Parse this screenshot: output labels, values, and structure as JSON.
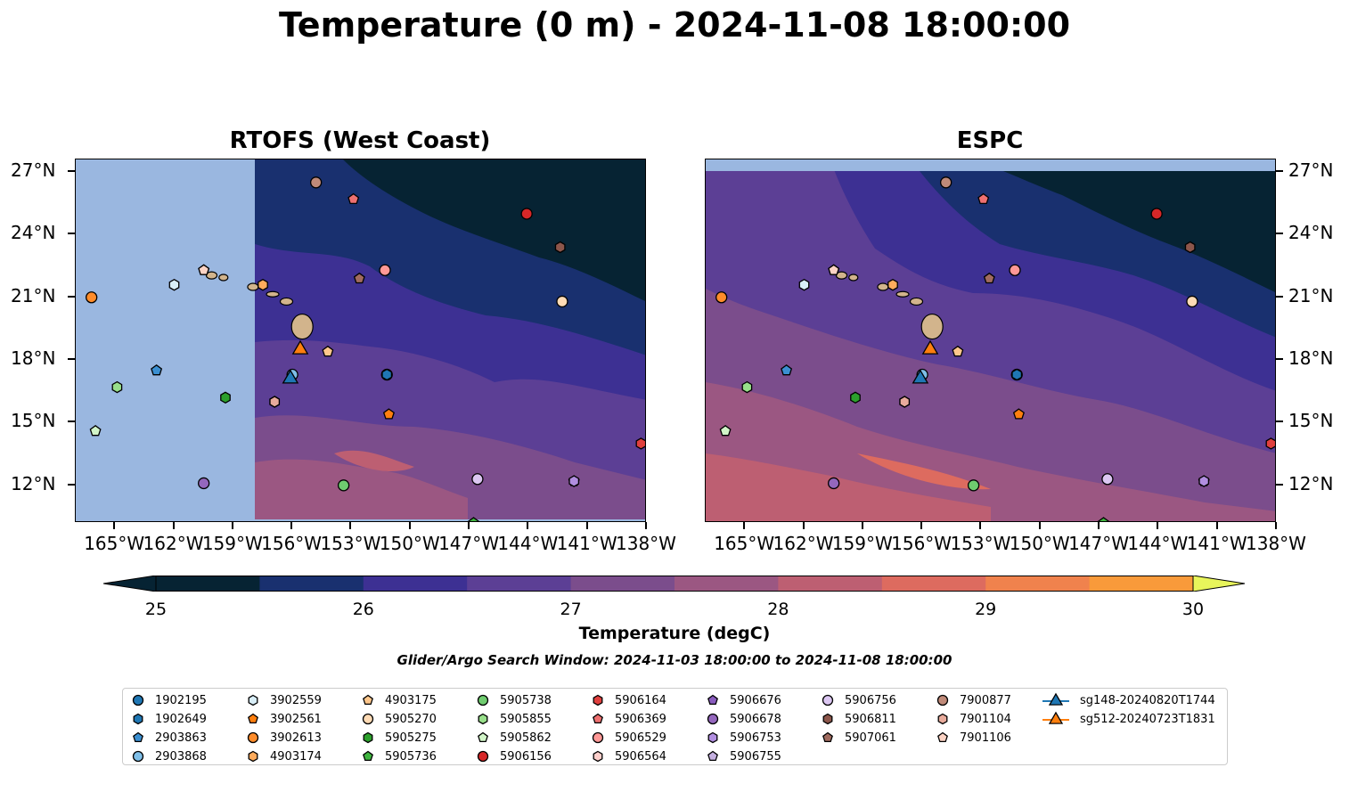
{
  "title": "Temperature (0 m) - 2024-11-08 18:00:00",
  "panels": [
    {
      "title": "RTOFS (West Coast)"
    },
    {
      "title": "ESPC"
    }
  ],
  "axes": {
    "lon_ticks": [
      "165°W",
      "162°W",
      "159°W",
      "156°W",
      "153°W",
      "150°W",
      "147°W",
      "144°W",
      "141°W",
      "138°W"
    ],
    "lat_ticks": [
      "27°N",
      "24°N",
      "21°N",
      "18°N",
      "15°N",
      "12°N"
    ],
    "lon_values": [
      -165,
      -162,
      -159,
      -156,
      -153,
      -150,
      -147,
      -144,
      -141,
      -138
    ],
    "lat_values": [
      27,
      24,
      21,
      18,
      15,
      12
    ],
    "lon_range": [
      -167,
      -138
    ],
    "lat_range": [
      10.2,
      27.6
    ]
  },
  "colorbar": {
    "label": "Temperature (degC)",
    "ticks": [
      "25",
      "26",
      "27",
      "28",
      "29",
      "30"
    ],
    "range": [
      25,
      30
    ],
    "extend": "both",
    "colors": [
      "#062333",
      "#19306f",
      "#3d3093",
      "#5c3f95",
      "#7b4d8c",
      "#9b5782",
      "#bd5f72",
      "#dd6b5f",
      "#f0824d",
      "#f99a3a",
      "#fcbc3e",
      "#e8f55b"
    ]
  },
  "search_window": "Glider/Argo Search Window: 2024-11-03 18:00:00 to 2024-11-08 18:00:00",
  "legend": [
    {
      "label": "1902195",
      "shape": "circle",
      "color": "#1f77b4"
    },
    {
      "label": "1902649",
      "shape": "hexagon",
      "color": "#1f77b4"
    },
    {
      "label": "2903863",
      "shape": "pentagon",
      "color": "#3b8fd1"
    },
    {
      "label": "2903868",
      "shape": "circle",
      "color": "#7fbfe8"
    },
    {
      "label": "3902559",
      "shape": "hexagon",
      "color": "#d8eef8"
    },
    {
      "label": "3902561",
      "shape": "pentagon",
      "color": "#ff7f0e"
    },
    {
      "label": "3902613",
      "shape": "circle",
      "color": "#ff8c2a"
    },
    {
      "label": "4903174",
      "shape": "hexagon",
      "color": "#ffab5c"
    },
    {
      "label": "4903175",
      "shape": "pentagon",
      "color": "#ffc78c"
    },
    {
      "label": "5905270",
      "shape": "circle",
      "color": "#ffdbb5"
    },
    {
      "label": "5905275",
      "shape": "hexagon",
      "color": "#2ca02c"
    },
    {
      "label": "5905736",
      "shape": "pentagon",
      "color": "#3fb43f"
    },
    {
      "label": "5905738",
      "shape": "circle",
      "color": "#6fcc6f"
    },
    {
      "label": "5905855",
      "shape": "hexagon",
      "color": "#98df8a"
    },
    {
      "label": "5905862",
      "shape": "pentagon",
      "color": "#d2f5c8"
    },
    {
      "label": "5906156",
      "shape": "circle",
      "color": "#d62728"
    },
    {
      "label": "5906164",
      "shape": "hexagon",
      "color": "#e0403e"
    },
    {
      "label": "5906369",
      "shape": "pentagon",
      "color": "#ee7070"
    },
    {
      "label": "5906529",
      "shape": "circle",
      "color": "#ff9896"
    },
    {
      "label": "5906564",
      "shape": "hexagon",
      "color": "#ffd0cc"
    },
    {
      "label": "5906676",
      "shape": "pentagon",
      "color": "#8a5cbf"
    },
    {
      "label": "5906678",
      "shape": "circle",
      "color": "#9467bd"
    },
    {
      "label": "5906753",
      "shape": "hexagon",
      "color": "#b18ee0"
    },
    {
      "label": "5906755",
      "shape": "pentagon",
      "color": "#c5b0e0"
    },
    {
      "label": "5906756",
      "shape": "circle",
      "color": "#dcc7f2"
    },
    {
      "label": "5906811",
      "shape": "hexagon",
      "color": "#8c564b"
    },
    {
      "label": "5907061",
      "shape": "pentagon",
      "color": "#a06b5f"
    },
    {
      "label": "7900877",
      "shape": "circle",
      "color": "#c08a79"
    },
    {
      "label": "7901104",
      "shape": "hexagon",
      "color": "#e8ab9c"
    },
    {
      "label": "7901106",
      "shape": "pentagon",
      "color": "#fcd3c4"
    },
    {
      "label": "sg148-20240820T1744",
      "shape": "triangle",
      "color": "#1f77b4"
    },
    {
      "label": "sg512-20240723T1831",
      "shape": "triangle",
      "color": "#ff7f0e"
    }
  ],
  "markers": [
    {
      "id": "1902195",
      "lon": -151.2,
      "lat": 17.3
    },
    {
      "id": "1902649",
      "lon": -151.2,
      "lat": 17.3
    },
    {
      "id": "2903863",
      "lon": -162.9,
      "lat": 17.5
    },
    {
      "id": "2903868",
      "lon": -156.0,
      "lat": 17.3
    },
    {
      "id": "3902559",
      "lon": -162.0,
      "lat": 21.6
    },
    {
      "id": "3902561",
      "lon": -151.1,
      "lat": 15.4
    },
    {
      "id": "3902613",
      "lon": -166.2,
      "lat": 21.0
    },
    {
      "id": "4903174",
      "lon": -157.5,
      "lat": 21.6
    },
    {
      "id": "4903175",
      "lon": -154.2,
      "lat": 18.4
    },
    {
      "id": "5905270",
      "lon": -142.3,
      "lat": 20.8
    },
    {
      "id": "5905275",
      "lon": -159.4,
      "lat": 16.2
    },
    {
      "id": "5905736",
      "lon": -146.8,
      "lat": 10.2
    },
    {
      "id": "5905738",
      "lon": -153.4,
      "lat": 12.0
    },
    {
      "id": "5905855",
      "lon": -164.9,
      "lat": 16.7
    },
    {
      "id": "5905862",
      "lon": -166.0,
      "lat": 14.6
    },
    {
      "id": "5906156",
      "lon": -144.1,
      "lat": 25.0
    },
    {
      "id": "5906164",
      "lon": -138.3,
      "lat": 14.0
    },
    {
      "id": "5906369",
      "lon": -152.9,
      "lat": 25.7
    },
    {
      "id": "5906529",
      "lon": -151.3,
      "lat": 22.3
    },
    {
      "id": "5906564",
      "lon": -156.9,
      "lat": 16.0
    },
    {
      "id": "5906676",
      "lon": -141.7,
      "lat": 12.2
    },
    {
      "id": "5906678",
      "lon": -160.5,
      "lat": 12.1
    },
    {
      "id": "5906753",
      "lon": -141.7,
      "lat": 12.2
    },
    {
      "id": "5906755",
      "lon": -160.5,
      "lat": 22.3
    },
    {
      "id": "5906756",
      "lon": -146.6,
      "lat": 12.3
    },
    {
      "id": "5906811",
      "lon": -142.4,
      "lat": 23.4
    },
    {
      "id": "5907061",
      "lon": -152.6,
      "lat": 21.9
    },
    {
      "id": "7900877",
      "lon": -154.8,
      "lat": 26.5
    },
    {
      "id": "7901104",
      "lon": -156.9,
      "lat": 16.0
    },
    {
      "id": "7901106",
      "lon": -160.5,
      "lat": 22.3
    },
    {
      "id": "sg148-20240820T1744",
      "lon": -156.1,
      "lat": 17.1
    },
    {
      "id": "sg512-20240723T1831",
      "lon": -155.6,
      "lat": 18.5
    }
  ]
}
